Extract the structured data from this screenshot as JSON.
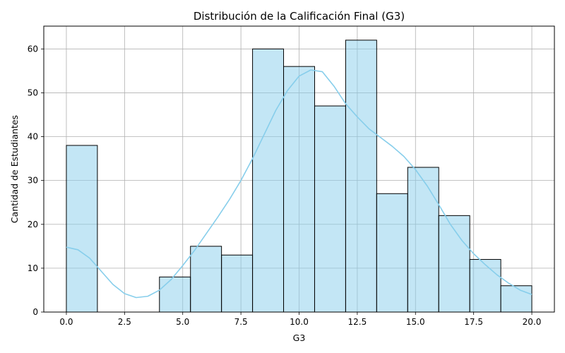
{
  "chart_data": {
    "type": "bar",
    "title": "Distribución de la Calificación Final (G3)",
    "xlabel": "G3",
    "ylabel": "Cantidad de Estudiantes",
    "xlim": [
      -0.97,
      20.97
    ],
    "ylim": [
      0,
      65.2
    ],
    "xticks": [
      0.0,
      2.5,
      5.0,
      7.5,
      10.0,
      12.5,
      15.0,
      17.5,
      20.0
    ],
    "xtick_labels": [
      "0.0",
      "2.5",
      "5.0",
      "7.5",
      "10.0",
      "12.5",
      "15.0",
      "17.5",
      "20.0"
    ],
    "yticks": [
      0,
      10,
      20,
      30,
      40,
      50,
      60
    ],
    "ytick_labels": [
      "0",
      "10",
      "20",
      "30",
      "40",
      "50",
      "60"
    ],
    "grid": true,
    "bin_edges": [
      0,
      1.3333,
      2.6667,
      4,
      5.3333,
      6.6667,
      8,
      9.3333,
      10.6667,
      12,
      13.3333,
      14.6667,
      16,
      17.3333,
      18.6667,
      20
    ],
    "values": [
      38,
      0,
      0,
      8,
      15,
      13,
      60,
      56,
      47,
      62,
      27,
      33,
      22,
      12,
      6
    ],
    "bar_color": "#87ceeb",
    "bar_edge_color": "#000000",
    "kde": {
      "color": "#87ceeb",
      "x": [
        0,
        0.5,
        1,
        1.5,
        2,
        2.5,
        3,
        3.5,
        4,
        4.5,
        5,
        5.5,
        6,
        6.5,
        7,
        7.5,
        8,
        8.5,
        9,
        9.5,
        10,
        10.5,
        11,
        11.5,
        12,
        12.5,
        13,
        13.5,
        14,
        14.5,
        15,
        15.5,
        16,
        16.5,
        17,
        17.5,
        18,
        18.5,
        19,
        19.5,
        20
      ],
      "y": [
        14.8,
        14.2,
        12.3,
        9.3,
        6.3,
        4.2,
        3.3,
        3.6,
        5.0,
        7.4,
        10.6,
        14.0,
        17.8,
        21.6,
        25.6,
        30.0,
        35.0,
        40.5,
        46.0,
        50.5,
        53.8,
        55.2,
        54.8,
        51.5,
        47.5,
        44.5,
        41.8,
        39.8,
        37.8,
        35.5,
        32.5,
        28.8,
        24.5,
        20.0,
        16.3,
        13.3,
        10.8,
        8.5,
        6.6,
        5.0,
        4.0
      ]
    }
  }
}
